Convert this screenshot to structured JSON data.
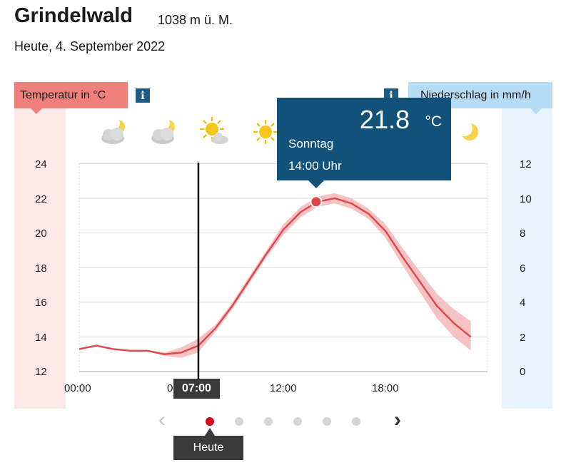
{
  "location": {
    "name": "Grindelwald",
    "altitude": "1038 m ü. M."
  },
  "date": "Heute, 4. September 2022",
  "temp_tab": {
    "label": "Temperatur in °C"
  },
  "precip_tab": {
    "label": "Niederschlag in mm/h"
  },
  "info_label": "i",
  "weather_icons": [
    "night-cloudy-icon",
    "night-cloudy-icon",
    "partly-sunny-icon",
    "sunny-icon",
    "night-clear-icon"
  ],
  "tooltip": {
    "value": "21.8",
    "unit": "°C",
    "day": "Sonntag",
    "time": "14:00 Uhr"
  },
  "current_time": "07:00",
  "day_badge": "Heute",
  "nav": {
    "prev": "‹",
    "next": "›"
  },
  "dots": {
    "count": 6,
    "active_index": 0
  },
  "colors": {
    "temp_line": "#e0454a",
    "temp_band": "#f5b9ba",
    "tooltip_bg": "#12527a",
    "active_dot": "#dc0018",
    "temp_tab": "#f17f7b",
    "precip_tab": "#b7dcf5"
  },
  "chart_data": {
    "type": "line",
    "x_ticks": [
      "00:00",
      "0",
      "12:00",
      "18:00"
    ],
    "y_left_ticks": [
      "12",
      "14",
      "16",
      "18",
      "20",
      "22",
      "24"
    ],
    "y_right_ticks": [
      "0",
      "2",
      "4",
      "6",
      "8",
      "10",
      "12"
    ],
    "y_left_range": [
      12,
      24
    ],
    "y_right_range": [
      0,
      12
    ],
    "x_range_hours": [
      0,
      24
    ],
    "grid": true,
    "temperature": {
      "hours": [
        0,
        1,
        2,
        3,
        4,
        5,
        6,
        7,
        8,
        9,
        10,
        11,
        12,
        13,
        14,
        15,
        16,
        17,
        18,
        19,
        20,
        21,
        22,
        23
      ],
      "values": [
        13.3,
        13.5,
        13.3,
        13.2,
        13.2,
        13.0,
        13.1,
        13.5,
        14.5,
        15.8,
        17.3,
        18.8,
        20.2,
        21.2,
        21.8,
        22.0,
        21.7,
        21.1,
        20.1,
        18.6,
        17.2,
        15.8,
        14.8,
        14.0
      ],
      "band_upper": [
        13.3,
        13.5,
        13.3,
        13.2,
        13.2,
        13.1,
        13.4,
        13.9,
        14.7,
        16.0,
        17.5,
        19.0,
        20.5,
        21.5,
        22.1,
        22.3,
        22.0,
        21.4,
        20.5,
        19.1,
        17.8,
        16.5,
        15.6,
        14.9
      ],
      "band_lower": [
        13.3,
        13.5,
        13.3,
        13.2,
        13.2,
        12.9,
        12.8,
        13.1,
        14.3,
        15.6,
        17.1,
        18.6,
        19.9,
        20.9,
        21.5,
        21.7,
        21.4,
        20.8,
        19.7,
        18.1,
        16.6,
        15.1,
        14.0,
        13.2
      ]
    },
    "selected_point": {
      "hour": 14,
      "value": 21.8
    },
    "current_hour": 7
  }
}
